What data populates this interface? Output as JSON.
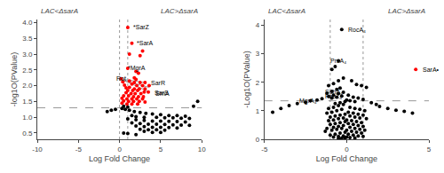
{
  "chart_data": [
    {
      "type": "scatter",
      "subtitle": [
        "LAC<ΔsarA",
        "LAC>ΔsarA"
      ],
      "x_label": "Log Fold Change",
      "y_label": "-log1O(PValue)",
      "xlim": [
        -10,
        10
      ],
      "ylim": [
        0.3,
        4.1
      ],
      "xticks": [
        -10,
        -5,
        0,
        5,
        10
      ],
      "yticks": [
        0.5,
        {
          "value": 1.0,
          "label": "1.0"
        },
        1.5,
        {
          "value": 2.0,
          "label": "2.0"
        },
        2.5,
        {
          "value": 3.0,
          "label": "3.0"
        },
        3.5,
        {
          "value": 4.0,
          "label": "4.0"
        }
      ],
      "grid": false,
      "hlines": [
        {
          "value": 1.3,
          "color": "gray",
          "line_style": "dashed"
        }
      ],
      "vlines": [
        {
          "value": 0.0,
          "color": "gray",
          "line_style": "dotted"
        },
        {
          "value": 1.0,
          "color": "gray",
          "line_style": "dotted"
        }
      ],
      "series": [
        {
          "color": "black",
          "x": [
            0.3,
            0.7,
            1.2,
            1.8,
            2.5,
            3.2,
            4.0,
            5.0,
            6.0,
            7.0,
            8.0,
            9.5,
            0.5,
            1.0,
            1.5,
            2.0,
            3.0,
            4.5,
            5.5,
            6.5,
            7.5,
            8.5,
            1.0,
            2.0,
            3.0,
            4.0,
            5.0,
            6.0,
            7.0,
            8.0,
            1.5,
            2.5,
            3.5,
            4.5,
            5.5,
            6.5,
            7.5,
            8.5,
            2.0,
            3.0,
            4.0,
            5.0,
            6.0,
            7.0,
            2.5,
            3.5,
            4.5,
            5.5,
            3.0,
            4.0,
            5.0,
            0.5,
            1.0,
            2.0,
            -0.5,
            -1.0,
            -1.5,
            9.0
          ],
          "values": [
            1.28,
            1.25,
            1.22,
            1.18,
            1.15,
            1.12,
            1.1,
            1.08,
            1.05,
            1.05,
            1.03,
            1.5,
            1.35,
            1.32,
            1.05,
            1.02,
            1.0,
            1.0,
            0.98,
            0.98,
            0.97,
            0.96,
            0.95,
            0.92,
            0.9,
            0.88,
            0.88,
            0.87,
            0.86,
            0.85,
            0.82,
            0.8,
            0.78,
            0.78,
            0.77,
            0.76,
            0.75,
            0.74,
            0.72,
            0.7,
            0.68,
            0.68,
            0.67,
            0.66,
            0.62,
            0.6,
            0.6,
            0.59,
            0.55,
            0.52,
            0.52,
            0.5,
            0.48,
            0.45,
            1.25,
            1.22,
            1.18,
            1.35
          ]
        },
        {
          "color": "red",
          "x": [
            1.0,
            1.5,
            1.2,
            2.5,
            2.8,
            1.0,
            2.0,
            2.3,
            1.8,
            2.0,
            1.2,
            1.8,
            2.5,
            3.1,
            1.5,
            2.1,
            2.8,
            3.6,
            1.2,
            1.8,
            2.4,
            3.1,
            1.0,
            1.6,
            2.2,
            3.0,
            3.5,
            0.8,
            1.4,
            1.9,
            2.6,
            0.5,
            1.1,
            1.7,
            2.3,
            2.9,
            0.3,
            0.9,
            1.5,
            2.1,
            2.8,
            0.5,
            1.1,
            1.7,
            2.4,
            3.1,
            0.3,
            0.9,
            1.5,
            2.2,
            0.2,
            0.4,
            0.6,
            0.8
          ],
          "values": [
            3.85,
            3.35,
            3.0,
            2.95,
            3.1,
            2.55,
            2.45,
            2.4,
            2.25,
            2.2,
            2.15,
            2.1,
            2.1,
            2.1,
            2.05,
            2.0,
            2.0,
            2.0,
            1.95,
            1.9,
            1.9,
            1.9,
            1.85,
            1.85,
            1.85,
            1.8,
            1.8,
            1.78,
            1.75,
            1.75,
            1.75,
            1.68,
            1.68,
            1.65,
            1.65,
            1.65,
            1.6,
            1.58,
            1.58,
            1.58,
            1.58,
            1.52,
            1.5,
            1.5,
            1.5,
            1.48,
            1.45,
            1.42,
            1.42,
            1.42,
            2.22,
            2.12,
            2.02,
            1.93
          ]
        }
      ],
      "lines": [
        {
          "x": [
            0.45,
            3.05
          ],
          "y": [
            2.2,
            2.1
          ],
          "color": "gray"
        },
        {
          "x": [
            0.45,
            3.45
          ],
          "y": [
            2.18,
            1.82
          ],
          "color": "gray"
        },
        {
          "x": [
            0.45,
            3.55
          ],
          "y": [
            2.16,
            1.95
          ],
          "color": "gray"
        }
      ],
      "annotations": [
        {
          "text": "*SarZ",
          "x": 1.4,
          "y": 3.85,
          "color": "black"
        },
        {
          "text": "*SarA",
          "x": 1.9,
          "y": 3.35,
          "color": "black"
        },
        {
          "text": "*MgrA",
          "x": 0.8,
          "y": 2.55,
          "color": "black"
        },
        {
          "text": "Rot",
          "x": -0.6,
          "y": 2.22,
          "color": "black"
        },
        {
          "text": "SarR",
          "x": 3.6,
          "y": 2.1,
          "color": "black"
        },
        {
          "text": "SarS",
          "x": 4.0,
          "y": 1.77,
          "color": "black"
        },
        {
          "text": "SrnA",
          "x": 4.1,
          "y": 1.75,
          "color": "black"
        }
      ]
    },
    {
      "type": "scatter",
      "subtitle": [
        "LAC<ΔsarA",
        "LAC>ΔsarA"
      ],
      "x_label": "Log Fold Change",
      "y_label": "-Log1O(PValue)",
      "xlim": [
        -5,
        5
      ],
      "ylim": [
        0,
        4.2
      ],
      "xticks": [
        -5,
        0,
        5
      ],
      "yticks": [
        0,
        1,
        2,
        3,
        4
      ],
      "grid": false,
      "hlines": [
        {
          "value": 1.35,
          "color": "gray",
          "line_style": "dashed"
        }
      ],
      "vlines": [
        {
          "value": -1.0,
          "color": "gray",
          "line_style": "dotted"
        },
        {
          "value": 1.0,
          "color": "gray",
          "line_style": "dotted"
        }
      ],
      "series": [
        {
          "color": "black",
          "x": [
            -0.3,
            -0.5,
            -0.7,
            -0.9,
            -0.2,
            -0.5,
            -0.8,
            -1.1,
            -0.4,
            -0.6,
            -0.9,
            -1.2,
            -0.2,
            -0.5,
            -0.8,
            -1.1,
            -0.3,
            -0.6,
            -0.9,
            -1.5,
            -1.8,
            -2.2,
            0.0,
            0.2,
            0.5,
            -0.1,
            -0.4,
            -0.7,
            0.3,
            0.6,
            0.9,
            1.2,
            0.1,
            0.4,
            0.7,
            1.0,
            -2.5,
            -3.0,
            -3.5,
            -4.0,
            -4.5,
            1.5,
            1.8,
            2.0,
            2.5,
            3.0,
            3.5,
            4.0,
            -0.2,
            -0.5,
            -0.8,
            -1.1,
            0.2,
            0.5,
            0.8,
            1.1,
            -0.3,
            -0.6,
            -0.9,
            -1.2,
            0.1,
            0.4,
            0.7,
            1.0,
            -0.1,
            -0.4,
            -0.7,
            -1.0,
            0.2,
            0.5,
            0.8,
            1.2,
            -0.2,
            -0.5,
            -0.8,
            -1.1,
            0.0,
            0.3,
            0.6,
            0.9,
            -0.1,
            -0.4,
            -0.7,
            -1.0,
            0.1,
            0.4,
            0.7,
            1.0,
            -0.2,
            -0.5,
            -0.8,
            -1.2,
            0.2,
            0.5,
            0.8,
            1.1,
            -0.3,
            -0.6,
            -0.9,
            -1.3,
            0.0,
            0.3,
            0.6,
            0.9,
            -0.1,
            -0.4,
            -0.7,
            -1.0,
            0.1,
            0.4,
            0.7,
            1.0,
            -0.2,
            -0.5,
            -0.8,
            0.0,
            0.2,
            0.5,
            -0.1,
            -0.3,
            -0.5
          ],
          "values": [
            3.85,
            2.75,
            2.55,
            2.45,
            2.15,
            2.05,
            1.95,
            1.88,
            1.8,
            1.75,
            1.68,
            1.62,
            1.65,
            1.6,
            1.55,
            1.5,
            1.52,
            1.48,
            1.45,
            1.42,
            1.38,
            1.35,
            1.38,
            1.35,
            1.32,
            1.32,
            1.28,
            1.25,
            2.05,
            1.92,
            1.88,
            1.82,
            1.55,
            1.48,
            1.45,
            1.4,
            1.3,
            1.25,
            1.18,
            1.08,
            0.95,
            1.28,
            1.22,
            1.15,
            1.08,
            1.02,
            0.98,
            0.92,
            1.22,
            1.18,
            1.12,
            1.08,
            1.12,
            1.08,
            1.05,
            1.0,
            1.05,
            1.0,
            0.95,
            0.92,
            0.95,
            0.92,
            0.88,
            0.85,
            0.88,
            0.85,
            0.82,
            0.78,
            0.82,
            0.78,
            0.75,
            0.72,
            0.75,
            0.72,
            0.68,
            0.65,
            0.68,
            0.65,
            0.62,
            0.58,
            0.62,
            0.58,
            0.55,
            0.52,
            0.55,
            0.52,
            0.48,
            0.45,
            0.48,
            0.45,
            0.42,
            0.38,
            0.42,
            0.38,
            0.35,
            0.32,
            0.38,
            0.35,
            0.32,
            0.28,
            0.32,
            0.28,
            0.25,
            0.22,
            0.25,
            0.22,
            0.18,
            0.15,
            0.18,
            0.15,
            0.12,
            0.1,
            0.12,
            0.1,
            0.08,
            0.08,
            0.06,
            0.05,
            0.05,
            0.04,
            0.03
          ]
        },
        {
          "color": "red",
          "x": [
            4.2
          ],
          "values": [
            2.45
          ]
        }
      ],
      "annotations": [
        {
          "text": "RocA₄",
          "x": 0.0,
          "y": 3.85,
          "color": "black"
        },
        {
          "text": "PrsA₄",
          "x": -1.1,
          "y": 2.75,
          "color": "black"
        },
        {
          "text": "SdhA₄",
          "x": -1.4,
          "y": 1.68,
          "color": "black"
        },
        {
          "text": "FabZ₄",
          "x": -1.4,
          "y": 1.52,
          "color": "black"
        },
        {
          "text": "MgrA₄",
          "x": -3.0,
          "y": 1.35,
          "color": "black"
        },
        {
          "text": "SarA•",
          "x": 4.5,
          "y": 2.45,
          "color": "black"
        }
      ]
    }
  ]
}
